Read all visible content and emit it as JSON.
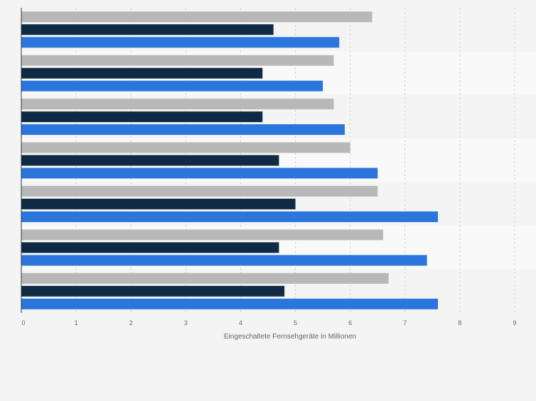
{
  "chart_data": {
    "type": "bar",
    "orientation": "horizontal",
    "categories": [
      "",
      "",
      "",
      "",
      "",
      "",
      ""
    ],
    "series": [
      {
        "color": "#b8b8b8",
        "values": [
          6.4,
          5.7,
          5.7,
          6.0,
          6.5,
          6.6,
          6.7
        ]
      },
      {
        "color": "#0f2a44",
        "values": [
          4.6,
          4.4,
          4.4,
          4.7,
          5.0,
          4.7,
          4.8
        ]
      },
      {
        "color": "#2a76dd",
        "values": [
          5.8,
          5.5,
          5.9,
          6.5,
          7.6,
          7.4,
          7.6
        ]
      }
    ],
    "xlabel": "Eingeschaltete Fernsehgeräte in Millionen",
    "xlim": [
      0,
      9
    ],
    "xticks": [
      "0",
      "1",
      "2",
      "3",
      "4",
      "5",
      "6",
      "7",
      "8",
      "9"
    ],
    "grid": true,
    "legend": "none"
  },
  "colors": {
    "background": "#f4f4f4",
    "band_light": "#f9f9f9",
    "band_dark": "#f4f4f4",
    "grid": "#d4d4d4",
    "axis": "#333333",
    "tick_text": "#666666"
  }
}
